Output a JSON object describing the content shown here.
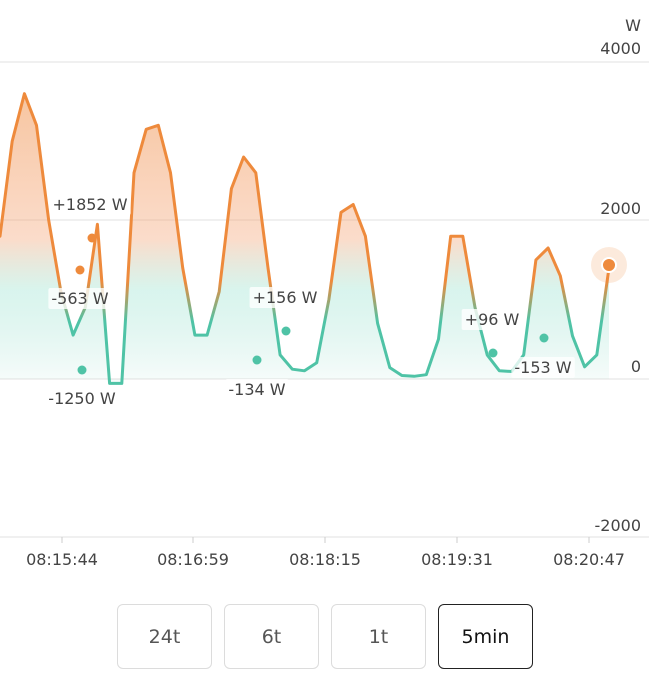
{
  "chart_data": {
    "type": "line",
    "title": "",
    "unit_label": "W",
    "ylim": [
      -2000,
      4000
    ],
    "y_ticks": [
      "4000",
      "2000",
      "0",
      "-2000"
    ],
    "x_ticks": [
      "08:15:44",
      "08:16:59",
      "08:18:15",
      "08:19:31",
      "08:20:47"
    ],
    "grid": true,
    "colors": {
      "positive": "#ee8a3c",
      "negative": "#4fc3a6"
    },
    "series": [
      {
        "values": [
          1800,
          3000,
          3600,
          3200,
          2000,
          1100,
          550,
          900,
          1950,
          -60,
          -60,
          2600,
          3150,
          3200,
          2600,
          1400,
          550,
          550,
          1100,
          2400,
          2800,
          2600,
          1400,
          300,
          120,
          100,
          200,
          1000,
          2100,
          2200,
          1800,
          700,
          140,
          40,
          30,
          50,
          500,
          1800,
          1800,
          900,
          300,
          100,
          90,
          300,
          1500,
          1650,
          1300,
          540,
          150,
          300,
          1400
        ]
      }
    ],
    "annotations": [
      {
        "text": "+1852 W",
        "value": 1852,
        "color": "#ee8a3c"
      },
      {
        "text": "-563 W",
        "value": -563,
        "color": "#ee8a3c"
      },
      {
        "text": "-1250 W",
        "value": -1250,
        "color": "#4fc3a6"
      },
      {
        "text": "+156 W",
        "value": 156,
        "color": "#4fc3a6"
      },
      {
        "text": "-134 W",
        "value": -134,
        "color": "#4fc3a6"
      },
      {
        "text": "+96 W",
        "value": 96,
        "color": "#4fc3a6"
      },
      {
        "text": "-153 W",
        "value": -153,
        "color": "#4fc3a6"
      }
    ]
  },
  "range_buttons": [
    {
      "label": "24t",
      "active": false
    },
    {
      "label": "6t",
      "active": false
    },
    {
      "label": "1t",
      "active": false
    },
    {
      "label": "5min",
      "active": true
    }
  ]
}
